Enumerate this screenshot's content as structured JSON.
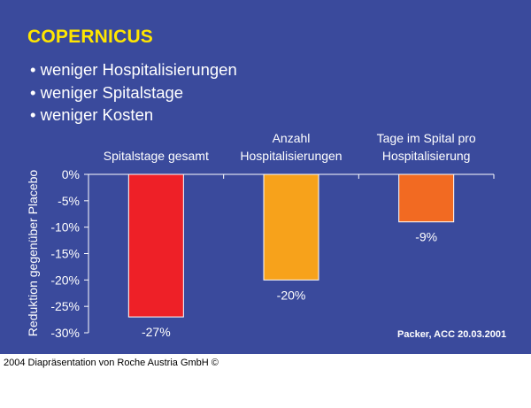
{
  "slide": {
    "title": "COPERNICUS",
    "bullets": [
      "weniger Hospitalisierungen",
      "weniger Spitalstage",
      "weniger Kosten"
    ],
    "source": "Packer, ACC 20.03.2001",
    "background_color": "#3a4a9c",
    "title_color": "#ffe600"
  },
  "footer": {
    "text": "2004 Diapräsentation von Roche Austria GmbH ©"
  },
  "chart_data": {
    "type": "bar",
    "categories": [
      [
        "Spitalstage gesamt"
      ],
      [
        "Anzahl",
        "Hospitalisierungen"
      ],
      [
        "Tage im Spital pro",
        "Hospitalisierung"
      ]
    ],
    "values": [
      -27,
      -20,
      -9
    ],
    "value_labels": [
      "-27%",
      "-20%",
      "-9%"
    ],
    "colors": [
      "#ee2027",
      "#f7a21b",
      "#f26a22"
    ],
    "xlabel": "",
    "ylabel": "Reduktion gegenüber Placebo",
    "ylim": [
      -30,
      0
    ],
    "yticks": [
      0,
      -5,
      -10,
      -15,
      -20,
      -25,
      -30
    ],
    "ytick_labels": [
      "0%",
      "-5%",
      "-10%",
      "-15%",
      "-20%",
      "-25%",
      "-30%"
    ],
    "grid": false,
    "legend": "none"
  }
}
